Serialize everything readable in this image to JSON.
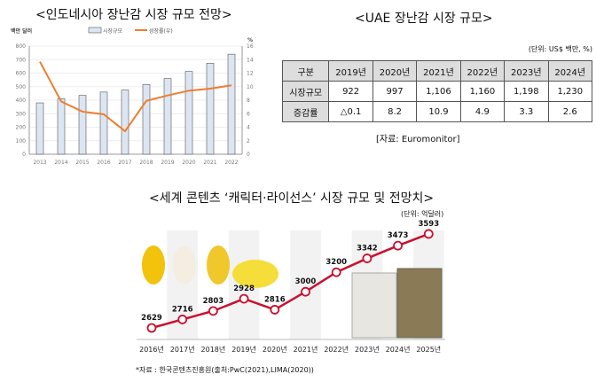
{
  "chart_data": [
    {
      "type": "bar+line",
      "title": "<인도네시아 장난감 시장 규모 전망>",
      "ylabel": "백만 달러",
      "y2label": "%",
      "categories": [
        "2013",
        "2014",
        "2015",
        "2016",
        "2017",
        "2018",
        "2019",
        "2020",
        "2021",
        "2022"
      ],
      "series": [
        {
          "name": "시장규모",
          "type": "bar",
          "axis": "left",
          "values": [
            380,
            410,
            435,
            460,
            475,
            515,
            560,
            612,
            673,
            740
          ]
        },
        {
          "name": "성장률(우)",
          "type": "line",
          "axis": "right",
          "values": [
            13.7,
            7.8,
            6.3,
            5.9,
            3.4,
            7.9,
            8.7,
            9.4,
            9.7,
            10.2
          ]
        }
      ],
      "ylim": [
        0,
        800
      ],
      "yticks": [
        "0",
        "100",
        "200",
        "300",
        "400",
        "500",
        "600",
        "700",
        "800"
      ],
      "y2lim": [
        0,
        16
      ],
      "y2ticks": [
        "0",
        "2",
        "4",
        "6",
        "8",
        "10",
        "12",
        "14",
        "16"
      ],
      "legend": "top",
      "grid": true
    },
    {
      "type": "table",
      "title": "<UAE 장난감 시장 규모>",
      "unit": "(단위: US$ 백만, %)",
      "header": [
        "구분",
        "2019년",
        "2020년",
        "2021년",
        "2022년",
        "2023년",
        "2024년"
      ],
      "rows": [
        [
          "시장규모",
          "922",
          "997",
          "1,106",
          "1,160",
          "1,198",
          "1,230"
        ],
        [
          "증감률",
          "△0.1",
          "8.2",
          "10.9",
          "4.9",
          "3.3",
          "2.6"
        ]
      ],
      "source": "[자료: Euromonitor]"
    },
    {
      "type": "line",
      "title": "<세계 콘텐츠 ‘캐릭터·라이선스’ 시장 규모 및 전망치>",
      "unit": "(단위: 억달러)",
      "categories": [
        "2016년",
        "2017년",
        "2018년",
        "2019년",
        "2020년",
        "2021년",
        "2022년",
        "2023년",
        "2024년",
        "2025년"
      ],
      "values": [
        2629,
        2716,
        2803,
        2928,
        2816,
        3000,
        3200,
        3342,
        3473,
        3593
      ],
      "source": "*자료 : 한국콘텐츠진흥원(출처:PwC(2021),LIMA(2020))",
      "color": "#c8102e"
    }
  ]
}
